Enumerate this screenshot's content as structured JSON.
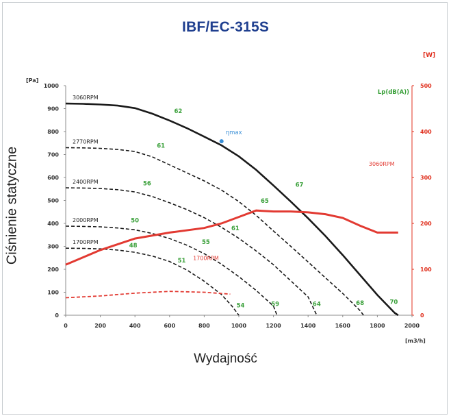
{
  "title": "IBF/EC-315S",
  "ylabel": "Ciśnienie statyczne",
  "xlabel": "Wydajność",
  "chart_data": {
    "type": "line",
    "left_unit": "[Pa]",
    "right_unit_lp": "Lp(dB(A))",
    "right_unit_w": "[W]",
    "x_unit": "[m3/h]",
    "xlim": [
      0,
      2000
    ],
    "ylim_left": [
      0,
      1000
    ],
    "ylim_right": [
      0,
      500
    ],
    "x_ticks": [
      "0",
      "200",
      "400",
      "600",
      "800",
      "1000",
      "1200",
      "1400",
      "1600",
      "1800",
      "2000"
    ],
    "y_ticks_left": [
      "0",
      "100",
      "200",
      "300",
      "400",
      "500",
      "600",
      "700",
      "800",
      "900",
      "1000"
    ],
    "y_ticks_right": [
      "0",
      "100",
      "200",
      "300",
      "400",
      "500"
    ],
    "pressure_curves": [
      {
        "name": "3060RPM",
        "style": "solid",
        "points": [
          [
            0,
            922
          ],
          [
            100,
            921
          ],
          [
            200,
            918
          ],
          [
            300,
            913
          ],
          [
            400,
            902
          ],
          [
            500,
            878
          ],
          [
            600,
            848
          ],
          [
            700,
            815
          ],
          [
            800,
            778
          ],
          [
            900,
            740
          ],
          [
            1000,
            692
          ],
          [
            1100,
            633
          ],
          [
            1200,
            565
          ],
          [
            1300,
            495
          ],
          [
            1400,
            422
          ],
          [
            1500,
            345
          ],
          [
            1600,
            262
          ],
          [
            1700,
            175
          ],
          [
            1800,
            88
          ],
          [
            1900,
            10
          ],
          [
            1920,
            0
          ]
        ]
      },
      {
        "name": "2770RPM",
        "style": "dashed",
        "points": [
          [
            0,
            730
          ],
          [
            100,
            729
          ],
          [
            200,
            727
          ],
          [
            300,
            722
          ],
          [
            400,
            713
          ],
          [
            500,
            690
          ],
          [
            600,
            655
          ],
          [
            700,
            620
          ],
          [
            800,
            585
          ],
          [
            900,
            545
          ],
          [
            1000,
            495
          ],
          [
            1100,
            435
          ],
          [
            1200,
            367
          ],
          [
            1300,
            300
          ],
          [
            1400,
            232
          ],
          [
            1500,
            163
          ],
          [
            1600,
            95
          ],
          [
            1700,
            20
          ],
          [
            1720,
            0
          ]
        ]
      },
      {
        "name": "2400RPM",
        "style": "dashed",
        "points": [
          [
            0,
            555
          ],
          [
            100,
            554
          ],
          [
            200,
            552
          ],
          [
            300,
            547
          ],
          [
            400,
            537
          ],
          [
            500,
            517
          ],
          [
            600,
            490
          ],
          [
            700,
            460
          ],
          [
            800,
            425
          ],
          [
            900,
            383
          ],
          [
            1000,
            335
          ],
          [
            1100,
            280
          ],
          [
            1200,
            220
          ],
          [
            1300,
            150
          ],
          [
            1400,
            80
          ],
          [
            1450,
            0
          ]
        ]
      },
      {
        "name": "2000RPM",
        "style": "dashed",
        "points": [
          [
            0,
            388
          ],
          [
            100,
            387
          ],
          [
            200,
            385
          ],
          [
            300,
            380
          ],
          [
            400,
            372
          ],
          [
            500,
            356
          ],
          [
            600,
            334
          ],
          [
            700,
            305
          ],
          [
            800,
            268
          ],
          [
            900,
            222
          ],
          [
            1000,
            168
          ],
          [
            1100,
            108
          ],
          [
            1200,
            40
          ],
          [
            1220,
            0
          ]
        ]
      },
      {
        "name": "1700RPM",
        "style": "dashed",
        "points": [
          [
            0,
            292
          ],
          [
            100,
            291
          ],
          [
            200,
            289
          ],
          [
            300,
            284
          ],
          [
            400,
            274
          ],
          [
            500,
            258
          ],
          [
            600,
            234
          ],
          [
            700,
            197
          ],
          [
            800,
            148
          ],
          [
            900,
            90
          ],
          [
            960,
            40
          ],
          [
            1000,
            0
          ]
        ]
      }
    ],
    "power_curves": [
      {
        "name": "3060RPM",
        "style": "solid",
        "points": [
          [
            0,
            110
          ],
          [
            200,
            142
          ],
          [
            400,
            167
          ],
          [
            600,
            180
          ],
          [
            800,
            190
          ],
          [
            900,
            200
          ],
          [
            1000,
            214
          ],
          [
            1100,
            228
          ],
          [
            1200,
            226
          ],
          [
            1300,
            226
          ],
          [
            1400,
            224
          ],
          [
            1500,
            220
          ],
          [
            1600,
            212
          ],
          [
            1700,
            195
          ],
          [
            1800,
            180
          ],
          [
            1920,
            180
          ]
        ]
      },
      {
        "name": "1700RPM",
        "style": "dashed",
        "points": [
          [
            0,
            38
          ],
          [
            200,
            42
          ],
          [
            400,
            48
          ],
          [
            600,
            52
          ],
          [
            800,
            50
          ],
          [
            950,
            46
          ]
        ]
      }
    ],
    "noise_labels": [
      {
        "text": "62",
        "x": 650,
        "y": 880
      },
      {
        "text": "61",
        "x": 550,
        "y": 730
      },
      {
        "text": "56",
        "x": 470,
        "y": 565
      },
      {
        "text": "50",
        "x": 400,
        "y": 405
      },
      {
        "text": "48",
        "x": 390,
        "y": 295
      },
      {
        "text": "67",
        "x": 1350,
        "y": 560
      },
      {
        "text": "65",
        "x": 1150,
        "y": 490
      },
      {
        "text": "61",
        "x": 980,
        "y": 370
      },
      {
        "text": "55",
        "x": 810,
        "y": 310
      },
      {
        "text": "51",
        "x": 670,
        "y": 230
      },
      {
        "text": "54",
        "x": 1010,
        "y": 35
      },
      {
        "text": "59",
        "x": 1210,
        "y": 40
      },
      {
        "text": "64",
        "x": 1450,
        "y": 40
      },
      {
        "text": "68",
        "x": 1700,
        "y": 45
      },
      {
        "text": "70",
        "x": 1895,
        "y": 50
      }
    ],
    "eta_max": {
      "label": "ηmax",
      "x": 900,
      "y": 758
    },
    "power_labels": [
      {
        "text": "3060RPM",
        "x": 1825,
        "y": 330
      },
      {
        "text": "1700RPM",
        "x": 810,
        "y": 125
      }
    ],
    "colors": {
      "pressure": "#1a1a1a",
      "power": "#e23a32",
      "noise": "#3aa03a",
      "eta": "#3a8fd6",
      "right_axis": "#e0301e",
      "grid": "#d9d9d9",
      "axis": "#8c8c8c",
      "title": "#1f3f8f"
    }
  }
}
